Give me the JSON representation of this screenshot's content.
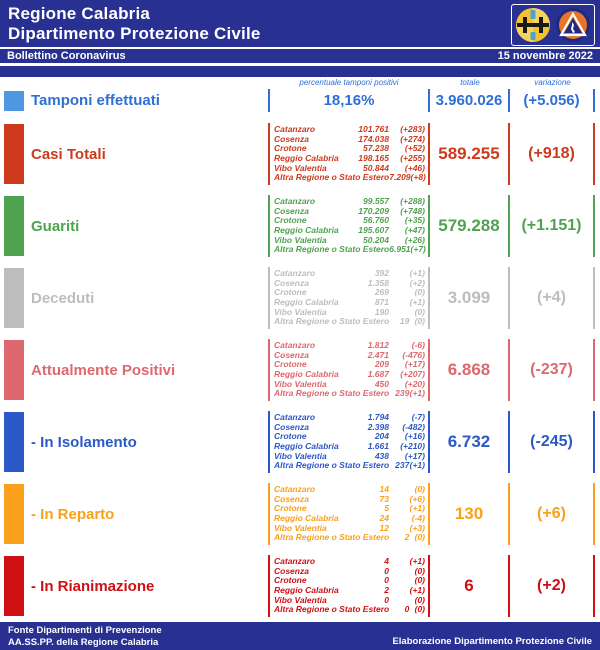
{
  "theme": {
    "header_bg": "#283191"
  },
  "header": {
    "title_line1": "Regione Calabria",
    "title_line2": "Dipartimento Protezione Civile",
    "bulletin_label": "Bollettino Coronavirus",
    "date": "15 novembre 2022"
  },
  "column_headers": {
    "percent": "percentuale tamponi positivi",
    "total": "totale",
    "variation": "variazione"
  },
  "tamponi": {
    "label": "Tamponi effettuati",
    "percent": "18,16%",
    "total": "3.960.026",
    "variation": "(+5.056)",
    "color": "#2e6fd6",
    "bar_color": "#4f97e0"
  },
  "rows": [
    {
      "label": "Casi Totali",
      "color": "#cd3a1d",
      "total": "589.255",
      "variation": "(+918)",
      "details": [
        {
          "name": "Catanzaro",
          "value": "101.761",
          "change": "(+283)"
        },
        {
          "name": "Cosenza",
          "value": "174.038",
          "change": "(+274)"
        },
        {
          "name": "Crotone",
          "value": "57.238",
          "change": "(+52)"
        },
        {
          "name": "Reggio Calabria",
          "value": "198.165",
          "change": "(+255)"
        },
        {
          "name": "Vibo Valentia",
          "value": "50.844",
          "change": "(+46)"
        },
        {
          "name": "Altra Regione o Stato Estero",
          "value": "7.209",
          "change": "(+8)"
        }
      ]
    },
    {
      "label": "Guariti",
      "color": "#4fa24f",
      "total": "579.288",
      "variation": "(+1.151)",
      "details": [
        {
          "name": "Catanzaro",
          "value": "99.557",
          "change": "(+288)"
        },
        {
          "name": "Cosenza",
          "value": "170.209",
          "change": "(+748)"
        },
        {
          "name": "Crotone",
          "value": "56.760",
          "change": "(+35)"
        },
        {
          "name": "Reggio Calabria",
          "value": "195.607",
          "change": "(+47)"
        },
        {
          "name": "Vibo Valentia",
          "value": "50.204",
          "change": "(+26)"
        },
        {
          "name": "Altra Regione o Stato Estero",
          "value": "6.951",
          "change": "(+7)"
        }
      ]
    },
    {
      "label": "Deceduti",
      "color": "#bdbdbd",
      "total": "3.099",
      "variation": "(+4)",
      "details": [
        {
          "name": "Catanzaro",
          "value": "392",
          "change": "(+1)"
        },
        {
          "name": "Cosenza",
          "value": "1.358",
          "change": "(+2)"
        },
        {
          "name": "Crotone",
          "value": "269",
          "change": "(0)"
        },
        {
          "name": "Reggio Calabria",
          "value": "871",
          "change": "(+1)"
        },
        {
          "name": "Vibo Valentia",
          "value": "190",
          "change": "(0)"
        },
        {
          "name": "Altra Regione o Stato Estero",
          "value": "19",
          "change": "(0)"
        }
      ]
    },
    {
      "label": "Attualmente Positivi",
      "color": "#dd686d",
      "total": "6.868",
      "variation": "(-237)",
      "details": [
        {
          "name": "Catanzaro",
          "value": "1.812",
          "change": "(-6)"
        },
        {
          "name": "Cosenza",
          "value": "2.471",
          "change": "(-476)"
        },
        {
          "name": "Crotone",
          "value": "209",
          "change": "(+17)"
        },
        {
          "name": "Reggio Calabria",
          "value": "1.687",
          "change": "(+207)"
        },
        {
          "name": "Vibo Valentia",
          "value": "450",
          "change": "(+20)"
        },
        {
          "name": "Altra Regione o Stato Estero",
          "value": "239",
          "change": "(+1)"
        }
      ]
    },
    {
      "label": "- In Isolamento",
      "color": "#2b59c8",
      "total": "6.732",
      "variation": "(-245)",
      "details": [
        {
          "name": "Catanzaro",
          "value": "1.794",
          "change": "(-7)"
        },
        {
          "name": "Cosenza",
          "value": "2.398",
          "change": "(-482)"
        },
        {
          "name": "Crotone",
          "value": "204",
          "change": "(+16)"
        },
        {
          "name": "Reggio Calabria",
          "value": "1.661",
          "change": "(+210)"
        },
        {
          "name": "Vibo Valentia",
          "value": "438",
          "change": "(+17)"
        },
        {
          "name": "Altra Regione o Stato Estero",
          "value": "237",
          "change": "(+1)"
        }
      ]
    },
    {
      "label": "- In Reparto",
      "color": "#f9a11b",
      "total": "130",
      "variation": "(+6)",
      "details": [
        {
          "name": "Catanzaro",
          "value": "14",
          "change": "(0)"
        },
        {
          "name": "Cosenza",
          "value": "73",
          "change": "(+6)"
        },
        {
          "name": "Crotone",
          "value": "5",
          "change": "(+1)"
        },
        {
          "name": "Reggio Calabria",
          "value": "24",
          "change": "(-4)"
        },
        {
          "name": "Vibo Valentia",
          "value": "12",
          "change": "(+3)"
        },
        {
          "name": "Altra Regione o Stato Estero",
          "value": "2",
          "change": "(0)"
        }
      ]
    },
    {
      "label": "- In Rianimazione",
      "color": "#cf1014",
      "total": "6",
      "variation": "(+2)",
      "details": [
        {
          "name": "Catanzaro",
          "value": "4",
          "change": "(+1)"
        },
        {
          "name": "Cosenza",
          "value": "0",
          "change": "(0)"
        },
        {
          "name": "Crotone",
          "value": "0",
          "change": "(0)"
        },
        {
          "name": "Reggio Calabria",
          "value": "2",
          "change": "(+1)"
        },
        {
          "name": "Vibo Valentia",
          "value": "0",
          "change": "(0)"
        },
        {
          "name": "Altra Regione o Stato Estero",
          "value": "0",
          "change": "(0)"
        }
      ]
    }
  ],
  "footer": {
    "source_line1": "Fonte Dipartimenti di Prevenzione",
    "source_line2": "AA.SS.PP.  della Regione Calabria",
    "elaboration": "Elaborazione Dipartimento Protezione Civile"
  }
}
